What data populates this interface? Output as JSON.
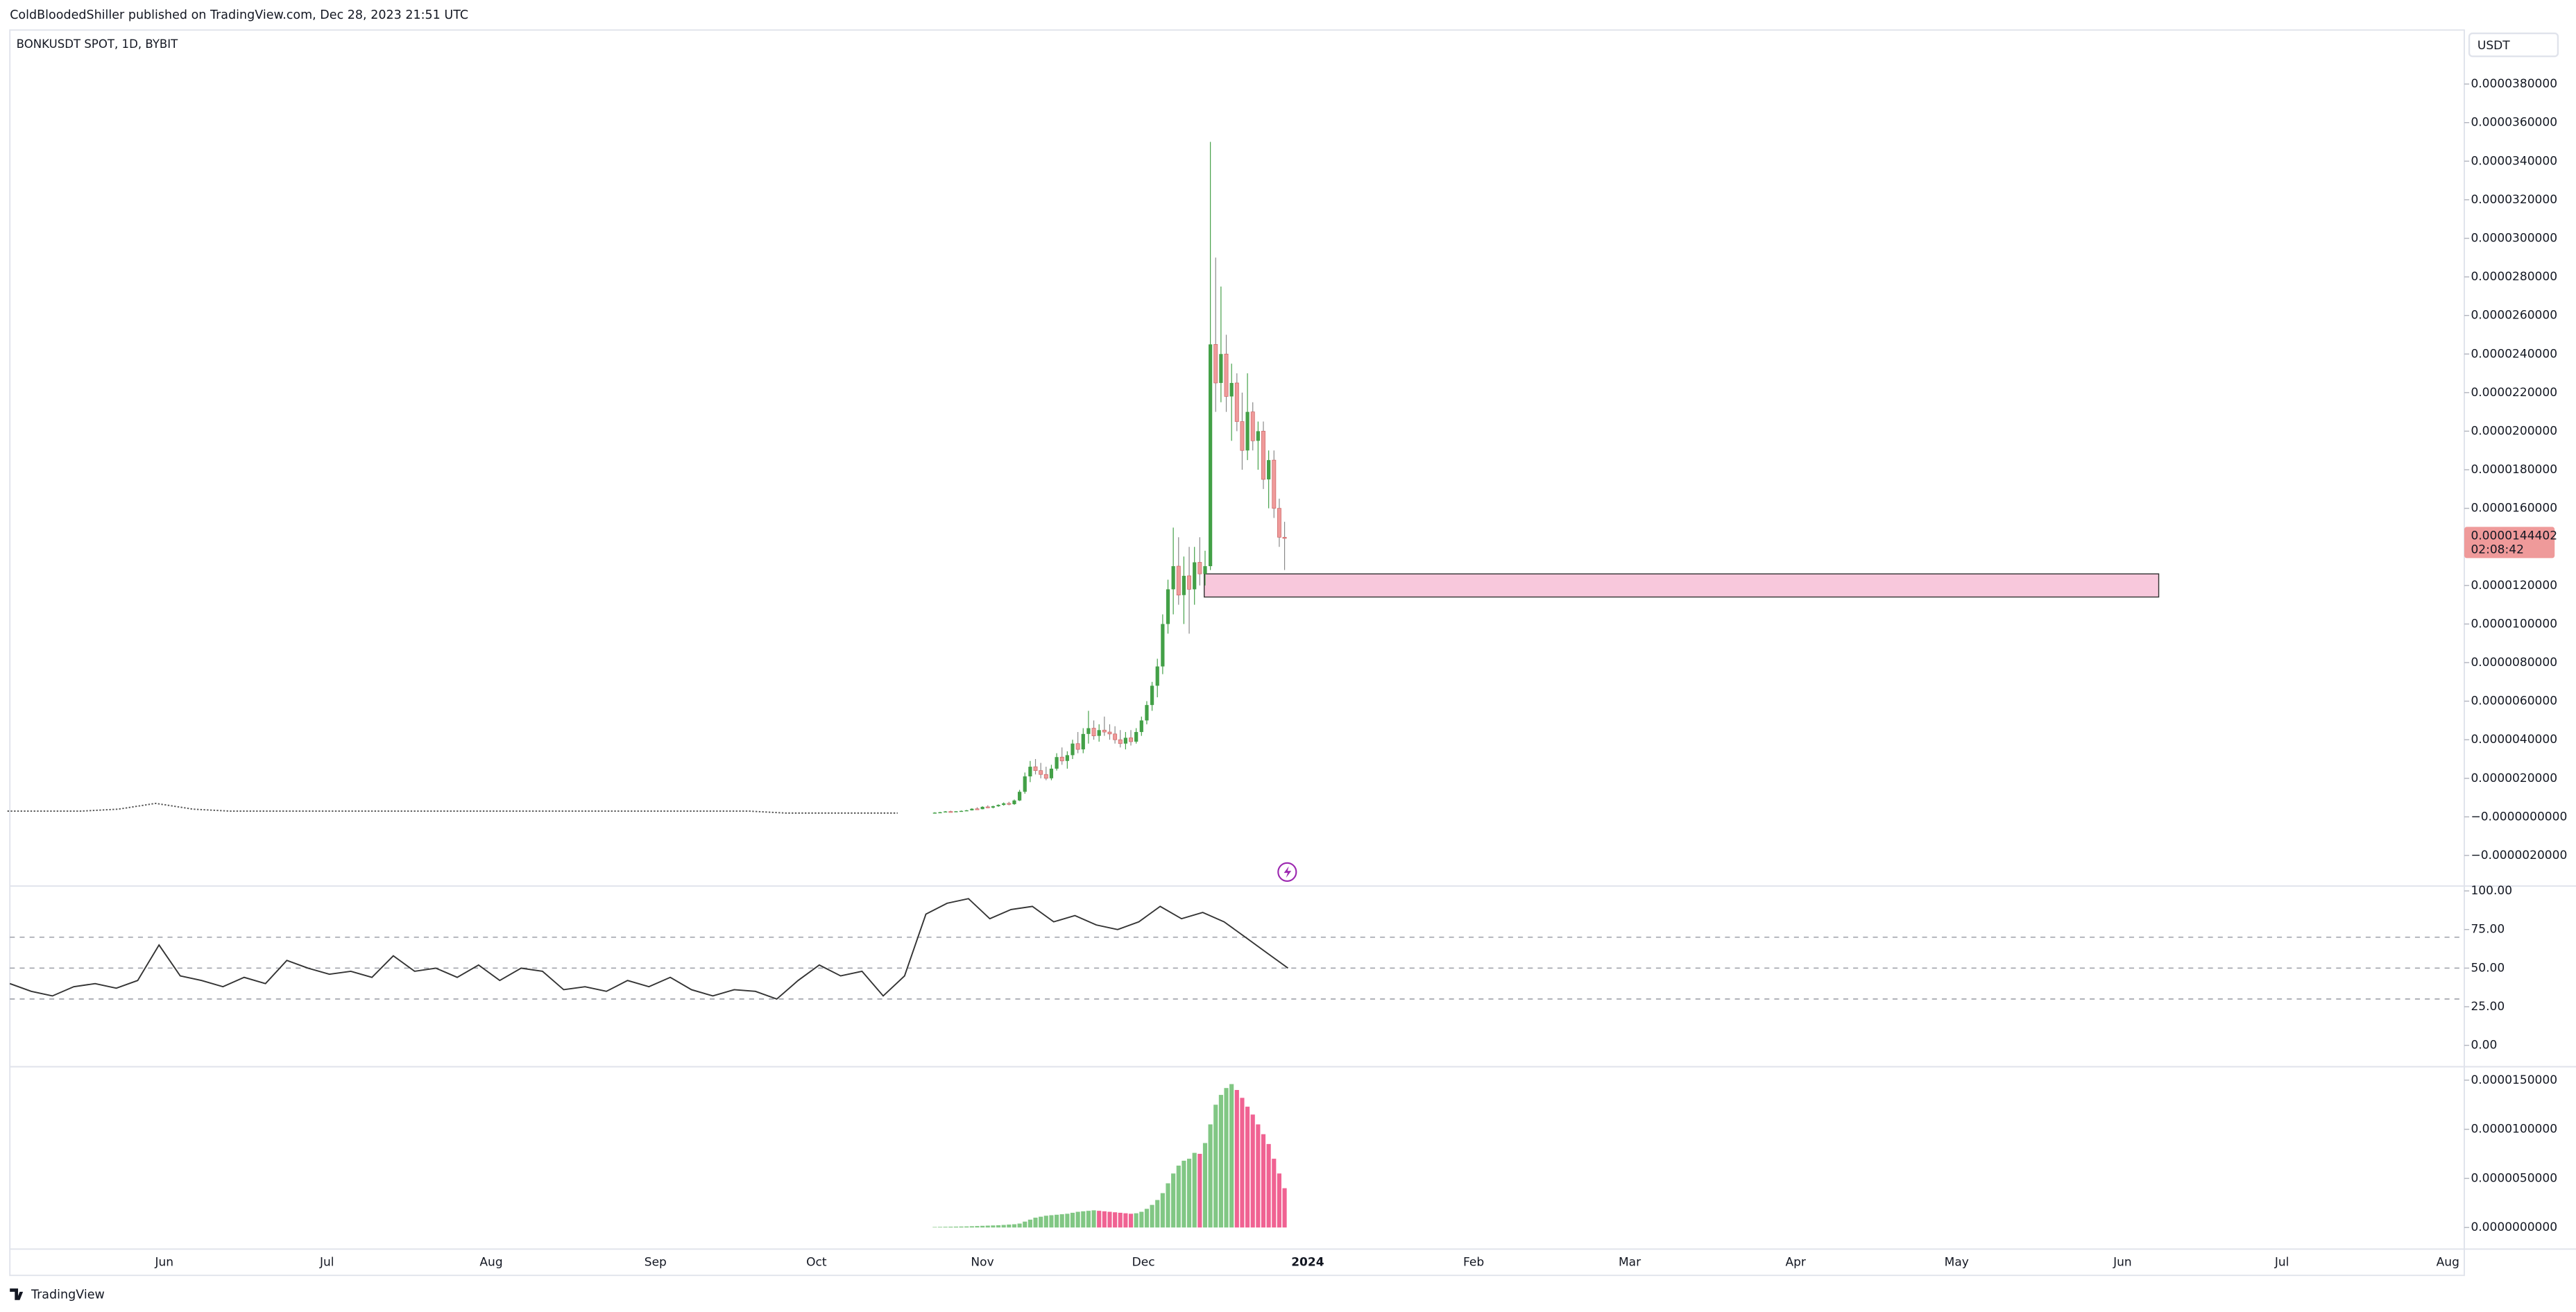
{
  "header": {
    "publisher": "ColdBloodedShiller published on TradingView.com, Dec 28, 2023 21:51 UTC",
    "logo": "TradingView"
  },
  "chart_data": [
    {
      "type": "candlestick",
      "title": "BONKUSDT SPOT, 1D, BYBIT",
      "currency": "USDT",
      "open": [
        2e-07,
        2.2e-07,
        2.4e-07,
        2.8e-07,
        2.7e-07,
        2.9e-07,
        3.1e-07,
        3.4e-07,
        4.2e-07,
        4e-07,
        5.2e-07,
        4.8e-07,
        5.5e-07,
        6.2e-07,
        7e-07,
        6.6e-07,
        8.5e-07,
        1.3e-06,
        2.1e-06,
        2.6e-06,
        2.4e-06,
        2.2e-06,
        2e-06,
        2.5e-06,
        3.1e-06,
        2.9e-06,
        3.2e-06,
        3.8e-06,
        3.5e-06,
        4.3e-06,
        4.6e-06,
        4.2e-06,
        4.5e-06,
        4.4e-06,
        4.3e-06,
        4e-06,
        3.8e-06,
        4.1e-06,
        3.9e-06,
        4.4e-06,
        5e-06,
        5.8e-06,
        6.8e-06,
        7.8e-06,
        1e-05,
        1.18e-05,
        1.3e-05,
        1.15e-05,
        1.25e-05,
        1.18e-05,
        1.32e-05,
        1.26e-05,
        1.3e-05,
        2.45e-05,
        2.25e-05,
        2.4e-05,
        2.18e-05,
        2.25e-05,
        2.05e-05,
        1.9e-05,
        2.1e-05,
        1.95e-05,
        2e-05,
        1.75e-05,
        1.85e-05,
        1.6e-05,
        1.45e-05
      ],
      "high": [
        2.4e-07,
        2.6e-07,
        3e-07,
        3.2e-07,
        3e-07,
        3.3e-07,
        3.6e-07,
        4.5e-07,
        5e-07,
        5.5e-07,
        6e-07,
        5.8e-07,
        6.5e-07,
        7.5e-07,
        7.8e-07,
        9e-07,
        1.4e-06,
        2.3e-06,
        2.9e-06,
        3e-06,
        2.8e-06,
        2.6e-06,
        2.7e-06,
        3.3e-06,
        3.6e-06,
        3.4e-06,
        4e-06,
        4.4e-06,
        4.6e-06,
        5.5e-06,
        5e-06,
        4.8e-06,
        5.2e-06,
        4.8e-06,
        4.7e-06,
        4.5e-06,
        4.4e-06,
        4.5e-06,
        4.6e-06,
        5.2e-06,
        6e-06,
        7e-06,
        8.2e-06,
        1.05e-05,
        1.23e-05,
        1.5e-05,
        1.45e-05,
        1.35e-05,
        1.4e-05,
        1.4e-05,
        1.45e-05,
        1.38e-05,
        3.5e-05,
        2.9e-05,
        2.75e-05,
        2.5e-05,
        2.35e-05,
        2.3e-05,
        2.2e-05,
        2.3e-05,
        2.15e-05,
        2.05e-05,
        2.05e-05,
        1.9e-05,
        1.9e-05,
        1.65e-05,
        1.53e-05
      ],
      "low": [
        1.9e-07,
        2.1e-07,
        2.3e-07,
        2.6e-07,
        2.5e-07,
        2.8e-07,
        3e-07,
        3.3e-07,
        3.8e-07,
        3.9e-07,
        4.5e-07,
        4.4e-07,
        5.2e-07,
        5.8e-07,
        6e-07,
        6.2e-07,
        8.2e-07,
        1.2e-06,
        1.8e-06,
        2.2e-06,
        2e-06,
        1.9e-06,
        1.9e-06,
        2.4e-06,
        2.7e-06,
        2.5e-06,
        3e-06,
        3.3e-06,
        3.3e-06,
        3.8e-06,
        4e-06,
        3.9e-06,
        4.2e-06,
        4e-06,
        3.8e-06,
        3.6e-06,
        3.5e-06,
        3.7e-06,
        3.8e-06,
        4.2e-06,
        4.8e-06,
        5.5e-06,
        6.2e-06,
        7.4e-06,
        9.5e-06,
        1.05e-05,
        1.1e-05,
        1e-05,
        9.5e-06,
        1.1e-05,
        1.2e-05,
        1.2e-05,
        1.28e-05,
        2.1e-05,
        2.15e-05,
        2.1e-05,
        1.95e-05,
        2e-05,
        1.8e-05,
        1.85e-05,
        1.9e-05,
        1.8e-05,
        1.7e-05,
        1.6e-05,
        1.55e-05,
        1.4e-05,
        1.28e-05
      ],
      "close": [
        2.2e-07,
        2.4e-07,
        2.8e-07,
        2.7e-07,
        2.9e-07,
        3.1e-07,
        3.4e-07,
        4.2e-07,
        4e-07,
        5.2e-07,
        4.8e-07,
        5.5e-07,
        6.2e-07,
        7e-07,
        6.6e-07,
        8.5e-07,
        1.3e-06,
        2.1e-06,
        2.6e-06,
        2.4e-06,
        2.2e-06,
        2e-06,
        2.5e-06,
        3.1e-06,
        2.9e-06,
        3.2e-06,
        3.8e-06,
        3.5e-06,
        4.3e-06,
        4.6e-06,
        4.2e-06,
        4.5e-06,
        4.4e-06,
        4.3e-06,
        4e-06,
        3.8e-06,
        4.1e-06,
        3.9e-06,
        4.4e-06,
        5e-06,
        5.8e-06,
        6.8e-06,
        7.8e-06,
        1e-05,
        1.18e-05,
        1.3e-05,
        1.15e-05,
        1.25e-05,
        1.18e-05,
        1.32e-05,
        1.26e-05,
        1.3e-05,
        2.45e-05,
        2.25e-05,
        2.4e-05,
        2.18e-05,
        2.25e-05,
        2.05e-05,
        1.9e-05,
        2.1e-05,
        1.95e-05,
        2e-05,
        1.75e-05,
        1.85e-05,
        1.6e-05,
        1.45e-05,
        1.44402e-05
      ],
      "early_close": [
        3e-07,
        3e-07,
        3e-07,
        4e-07,
        7e-07,
        4e-07,
        3e-07,
        3e-07,
        3e-07,
        3e-07,
        3e-07,
        3e-07,
        3e-07,
        3e-07,
        3e-07,
        3e-07,
        3e-07,
        3e-07,
        3e-07,
        3e-07,
        3e-07,
        2e-07,
        2e-07,
        2e-07,
        2e-07
      ],
      "up_color": "#43a047",
      "down_color": "#ef9a9a",
      "line_color": "#555555",
      "ylim": [
        -3.5e-06,
        4.08e-05
      ],
      "yticks": [
        {
          "value": 3.8e-05,
          "label": "0.0000380000"
        },
        {
          "value": 3.6e-05,
          "label": "0.0000360000"
        },
        {
          "value": 3.4e-05,
          "label": "0.0000340000"
        },
        {
          "value": 3.2e-05,
          "label": "0.0000320000"
        },
        {
          "value": 3e-05,
          "label": "0.0000300000"
        },
        {
          "value": 2.8e-05,
          "label": "0.0000280000"
        },
        {
          "value": 2.6e-05,
          "label": "0.0000260000"
        },
        {
          "value": 2.4e-05,
          "label": "0.0000240000"
        },
        {
          "value": 2.2e-05,
          "label": "0.0000220000"
        },
        {
          "value": 2e-05,
          "label": "0.0000200000"
        },
        {
          "value": 1.8e-05,
          "label": "0.0000180000"
        },
        {
          "value": 1.6e-05,
          "label": "0.0000160000"
        },
        {
          "value": 1.2e-05,
          "label": "0.0000120000"
        },
        {
          "value": 1e-05,
          "label": "0.0000100000"
        },
        {
          "value": 8e-06,
          "label": "0.0000080000"
        },
        {
          "value": 6e-06,
          "label": "0.0000060000"
        },
        {
          "value": 4e-06,
          "label": "0.0000040000"
        },
        {
          "value": 2e-06,
          "label": "0.0000020000"
        },
        {
          "value": 0,
          "label": "−0.0000000000"
        },
        {
          "value": -2e-06,
          "label": "−0.0000020000"
        }
      ],
      "last_price": {
        "value": 1.44402e-05,
        "label": "0.0000144402"
      },
      "countdown": "02:08:42",
      "last_color": "#ef9a9a",
      "zone": {
        "top": 1.26e-05,
        "bottom": 1.14e-05,
        "color": "#f8c8dc"
      },
      "x_labels": [
        "Jun",
        "Jul",
        "Aug",
        "Sep",
        "Oct",
        "Nov",
        "Dec",
        "2024",
        "Feb",
        "Mar",
        "Apr",
        "May",
        "Jun",
        "Jul",
        "Aug"
      ]
    },
    {
      "type": "line",
      "color": "#333333",
      "values": [
        40,
        35,
        32,
        38,
        40,
        37,
        42,
        65,
        45,
        42,
        38,
        44,
        40,
        55,
        50,
        46,
        48,
        44,
        58,
        48,
        50,
        44,
        52,
        42,
        50,
        48,
        36,
        38,
        35,
        42,
        38,
        44,
        36,
        32,
        36,
        35,
        30,
        42,
        52,
        45,
        48,
        32,
        45,
        85,
        92,
        95,
        82,
        88,
        90,
        80,
        84,
        78,
        75,
        80,
        90,
        82,
        86,
        80,
        70,
        60,
        50
      ],
      "ylim": [
        -12.8,
        102.1
      ],
      "yticks": [
        {
          "value": 100,
          "label": "100.00"
        },
        {
          "value": 75,
          "label": "75.00"
        },
        {
          "value": 50,
          "label": "50.00"
        },
        {
          "value": 25,
          "label": "25.00"
        },
        {
          "value": 0,
          "label": "0.00"
        }
      ],
      "levels": [
        70,
        50,
        30
      ]
    },
    {
      "type": "bar",
      "rising_color": "#81c784",
      "falling_color": "#f06292",
      "values": [
        5e-08,
        6e-08,
        7e-08,
        8e-08,
        9e-08,
        1e-07,
        1.1e-07,
        1.3e-07,
        1.5e-07,
        1.7e-07,
        1.9e-07,
        2.1e-07,
        2.3e-07,
        2.6e-07,
        3e-07,
        3.3e-07,
        4e-07,
        6e-07,
        8e-07,
        1e-06,
        1.1e-06,
        1.2e-06,
        1.25e-06,
        1.3e-06,
        1.35e-06,
        1.4e-06,
        1.5e-06,
        1.6e-06,
        1.65e-06,
        1.7e-06,
        1.75e-06,
        1.7e-06,
        1.65e-06,
        1.6e-06,
        1.55e-06,
        1.5e-06,
        1.45e-06,
        1.4e-06,
        1.45e-06,
        1.6e-06,
        1.9e-06,
        2.3e-06,
        2.8e-06,
        3.5e-06,
        4.5e-06,
        5.5e-06,
        6.3e-06,
        6.8e-06,
        7e-06,
        7.6e-06,
        7.5e-06,
        8.6e-06,
        1.05e-05,
        1.25e-05,
        1.35e-05,
        1.42e-05,
        1.46e-05,
        1.4e-05,
        1.32e-05,
        1.23e-05,
        1.15e-05,
        1.05e-05,
        9.5e-06,
        8.5e-06,
        7e-06,
        5.5e-06,
        4e-06
      ],
      "ylim": [
        -2.2e-06,
        1.62e-05
      ],
      "yticks": [
        {
          "value": 1.5e-05,
          "label": "0.0000150000"
        },
        {
          "value": 1e-05,
          "label": "0.0000100000"
        },
        {
          "value": 5e-06,
          "label": "0.0000050000"
        },
        {
          "value": 0,
          "label": "0.0000000000"
        }
      ]
    }
  ]
}
